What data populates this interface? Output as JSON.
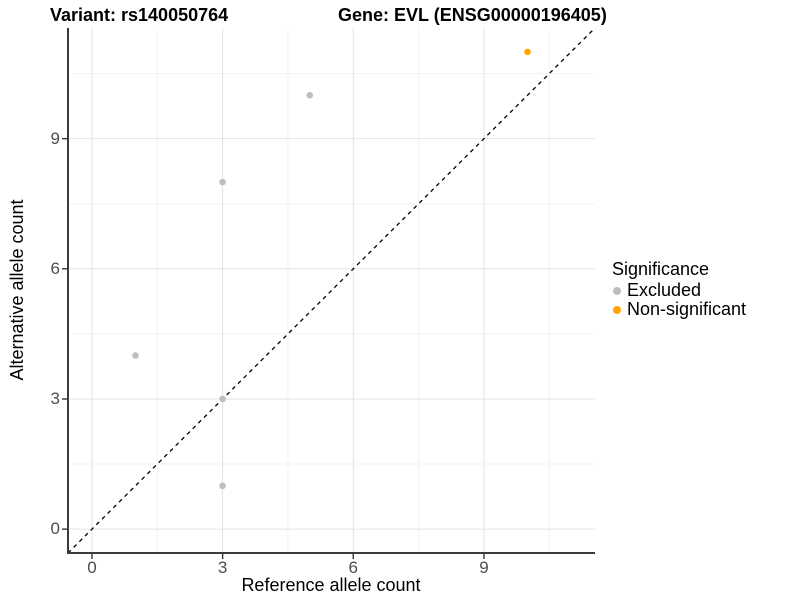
{
  "titles": {
    "variant": "Variant: rs140050764",
    "gene": "Gene: EVL (ENSG00000196405)"
  },
  "axes": {
    "x": {
      "label": "Reference allele count",
      "ticks": [
        0,
        3,
        6,
        9
      ],
      "minor": [
        1.5,
        4.5,
        7.5,
        10.5
      ]
    },
    "y": {
      "label": "Alternative allele count",
      "ticks": [
        0,
        3,
        6,
        9
      ],
      "minor": [
        1.5,
        4.5,
        7.5,
        10.5
      ]
    }
  },
  "legend": {
    "title": "Significance",
    "items": [
      {
        "label": "Excluded",
        "color": "#BEBEBE"
      },
      {
        "label": "Non-significant",
        "color": "#FFA500"
      }
    ]
  },
  "colors": {
    "excluded_point": "#BEBEBE",
    "non_significant_point": "#FFA500",
    "axis_line": "#3C3C3C",
    "tick_mark": "#333333",
    "tick_label": "#4D4D4D",
    "grid_major": "#E4E4E4",
    "grid_minor": "#F3F3F3",
    "identity_line": "#000000",
    "background": "#FFFFFF"
  },
  "chart_data": {
    "type": "scatter",
    "title": "Variant: rs140050764 / Gene: EVL (ENSG00000196405)",
    "xlabel": "Reference allele count",
    "ylabel": "Alternative allele count",
    "xlim": [
      -0.55,
      11.55
    ],
    "ylim": [
      -0.55,
      11.55
    ],
    "x_ticks": [
      0,
      3,
      6,
      9
    ],
    "y_ticks": [
      0,
      3,
      6,
      9
    ],
    "grid": true,
    "legend_position": "right",
    "series": [
      {
        "name": "Excluded",
        "color": "#BEBEBE",
        "points": [
          [
            1,
            4
          ],
          [
            3,
            1
          ],
          [
            3,
            3
          ],
          [
            3,
            8
          ],
          [
            5,
            10
          ]
        ]
      },
      {
        "name": "Non-significant",
        "color": "#FFA500",
        "points": [
          [
            10,
            11
          ]
        ]
      }
    ],
    "reference_line": {
      "type": "identity",
      "style": "dashed",
      "color": "#000000"
    }
  }
}
